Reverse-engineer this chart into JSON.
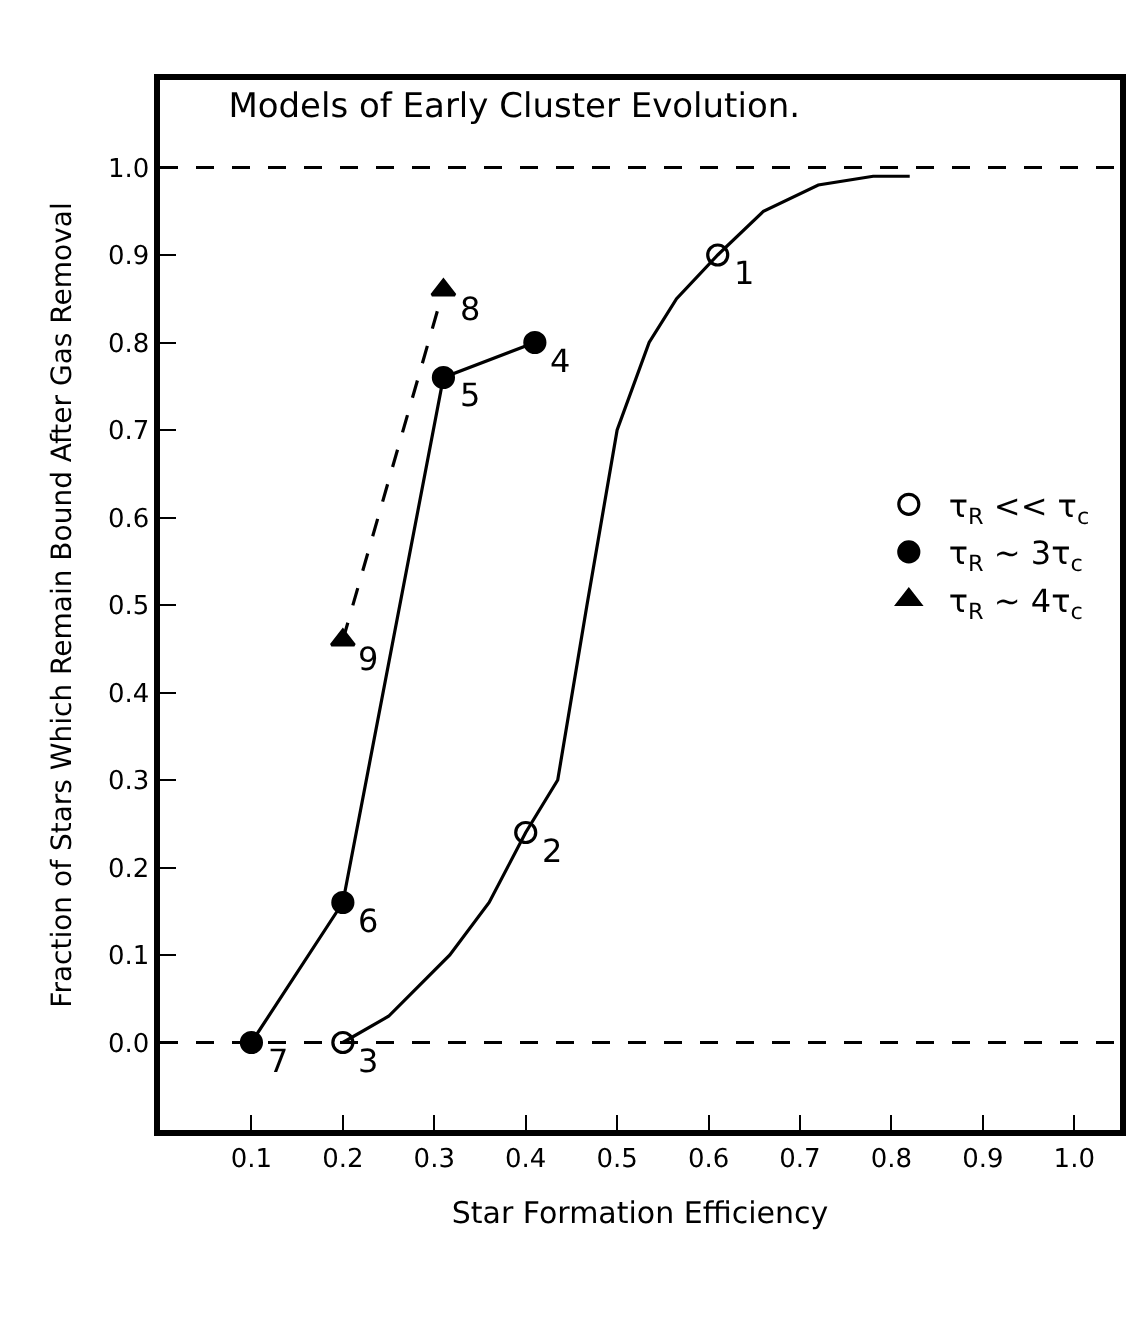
{
  "chart_data": {
    "type": "scatter",
    "title": "Models of Early Cluster Evolution.",
    "xlabel": "Star Formation Efficiency",
    "ylabel": "Fraction of Stars Which Remain Bound After Gas Removal",
    "xlim": [
      0,
      1.05
    ],
    "xticks": [
      0.1,
      0.2,
      0.3,
      0.4,
      0.5,
      0.6,
      0.7,
      0.8,
      0.9,
      {
        "value": 1.0,
        "label": "1.0"
      }
    ],
    "ylim": [
      -0.1,
      1.1
    ],
    "yticks": [
      {
        "value": 0,
        "label": "0.0"
      },
      0.1,
      0.2,
      0.3,
      0.4,
      0.5,
      0.6,
      0.7,
      0.8,
      0.9,
      {
        "value": 1.0,
        "label": "1.0"
      }
    ],
    "grid": false,
    "legend": "right",
    "series": [
      {
        "name": "τ$_{R}$ << τ$_{c}$",
        "marker": "circle",
        "color": "#000000",
        "x": [
          0.2,
          0.4,
          0.61
        ],
        "values": [
          0,
          0.24,
          0.9
        ]
      },
      {
        "name": "τ$_{R}$ ~ 3τ$_{c}$",
        "type": "line",
        "marker": "circle",
        "line_style": "solid",
        "color": "#000000",
        "x": [
          0.1,
          0.2,
          0.31,
          0.41
        ],
        "values": [
          0,
          0.16,
          0.76,
          0.8
        ]
      },
      {
        "name": "τ$_{R}$ ~ 4τ$_{c}$",
        "type": "line",
        "marker": "triangle",
        "line_style": "dashed",
        "color": "#000000",
        "x": [
          0.2,
          0.31
        ],
        "values": [
          0.46,
          0.86
        ]
      },
      {
        "type": "line",
        "marker": "none",
        "line_style": "solid",
        "color": "#000000",
        "x": [
          0.2,
          0.25,
          0.317,
          0.36,
          0.4,
          0.435,
          0.467,
          0.5,
          0.535,
          0.565,
          0.61,
          0.66,
          0.72,
          0.78,
          0.82
        ],
        "values": [
          0,
          0.03,
          0.1,
          0.16,
          0.24,
          0.3,
          0.5,
          0.7,
          0.8,
          0.85,
          0.9,
          0.95,
          0.98,
          0.99,
          0.99
        ]
      }
    ],
    "ref_lines": [
      {
        "axis": "y",
        "value": 0,
        "line_style": "dashed",
        "color": "#000000"
      },
      {
        "axis": "y",
        "value": 1,
        "line_style": "dashed",
        "color": "#000000"
      }
    ],
    "annotations": [
      {
        "text": "1",
        "x": 0.61,
        "y": 0.9
      },
      {
        "text": "2",
        "x": 0.4,
        "y": 0.24
      },
      {
        "text": "3",
        "x": 0.2,
        "y": 0
      },
      {
        "text": "4",
        "x": 0.41,
        "y": 0.8
      },
      {
        "text": "5",
        "x": 0.31,
        "y": 0.76
      },
      {
        "text": "6",
        "x": 0.2,
        "y": 0.16
      },
      {
        "text": "7",
        "x": 0.1,
        "y": 0
      },
      {
        "text": "8",
        "x": 0.31,
        "y": 0.86
      },
      {
        "text": "9",
        "x": 0.2,
        "y": 0.46
      }
    ]
  }
}
